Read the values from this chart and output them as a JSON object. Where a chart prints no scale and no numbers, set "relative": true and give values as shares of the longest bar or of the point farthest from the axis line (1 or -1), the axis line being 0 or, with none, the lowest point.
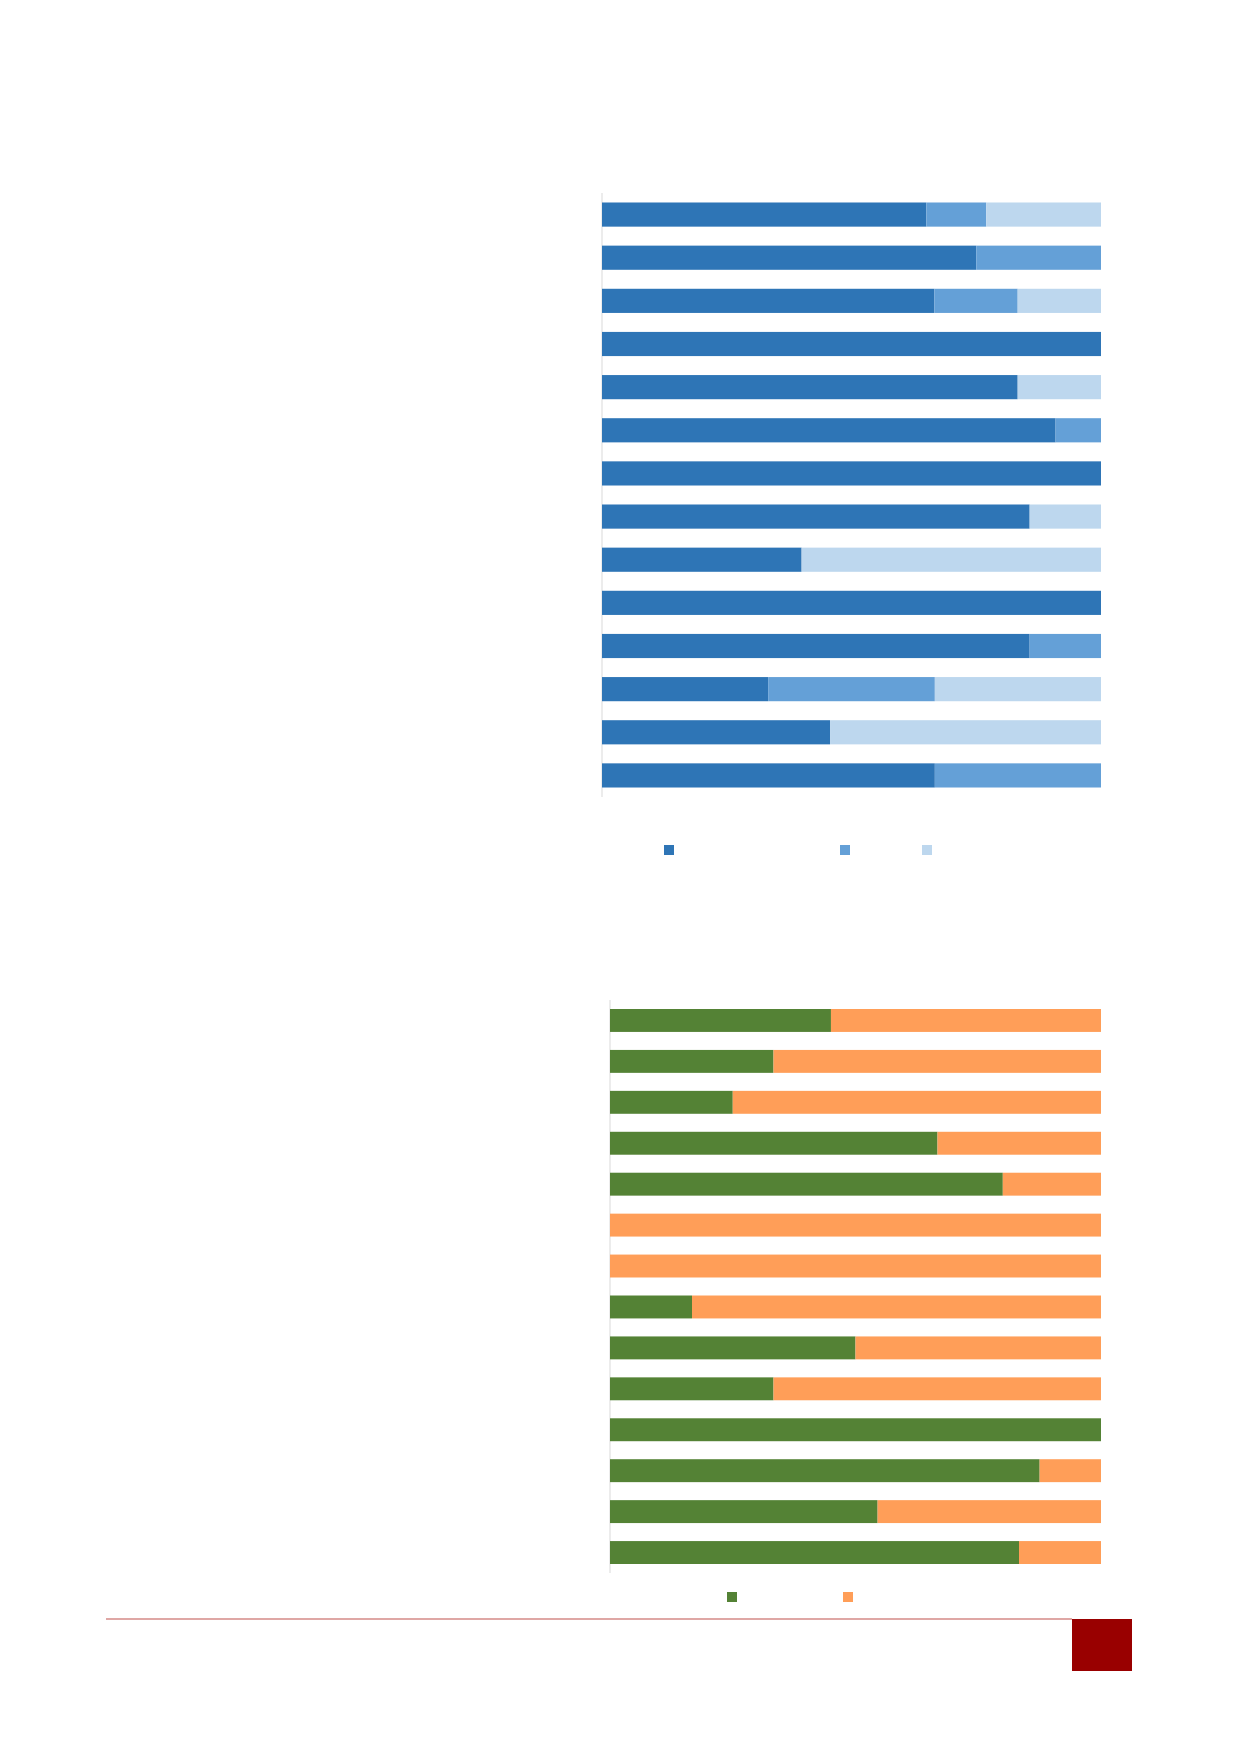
{
  "chart_data": [
    {
      "type": "bar",
      "orientation": "horizontal",
      "stacked": true,
      "relative": true,
      "categories": [
        null,
        null,
        null,
        null,
        null,
        null,
        null,
        null,
        null,
        null,
        null,
        null,
        null,
        null
      ],
      "series": [
        {
          "color": "#2e75b6",
          "values": [
            0.65,
            0.75,
            0.666,
            1,
            0.833,
            0.909,
            1,
            0.857,
            0.4,
            1,
            0.857,
            0.333,
            0.457,
            0.667
          ]
        },
        {
          "color": "#64a0d7",
          "values": [
            0.12,
            0.25,
            0.167,
            0,
            0,
            0.091,
            0,
            0,
            0,
            0,
            0.143,
            0.334,
            0,
            0.333
          ]
        },
        {
          "color": "#bdd7ee",
          "values": [
            0.23,
            0,
            0.167,
            0,
            0.167,
            0,
            0,
            0.143,
            0.6,
            0,
            0,
            0.333,
            0.543,
            0
          ]
        }
      ]
    },
    {
      "type": "bar",
      "orientation": "horizontal",
      "stacked": true,
      "relative": true,
      "categories": [
        null,
        null,
        null,
        null,
        null,
        null,
        null,
        null,
        null,
        null,
        null,
        null,
        null,
        null
      ],
      "series": [
        {
          "color": "#548235",
          "values": [
            0.45,
            0.333,
            0.25,
            0.667,
            0.8,
            0,
            0,
            0.167,
            0.5,
            0.333,
            1,
            0.875,
            0.545,
            0.833
          ]
        },
        {
          "color": "#ff9e58",
          "values": [
            0.55,
            0.667,
            0.75,
            0.333,
            0.2,
            1,
            1,
            0.833,
            0.5,
            0.667,
            0,
            0.125,
            0.455,
            0.167
          ]
        }
      ]
    }
  ]
}
